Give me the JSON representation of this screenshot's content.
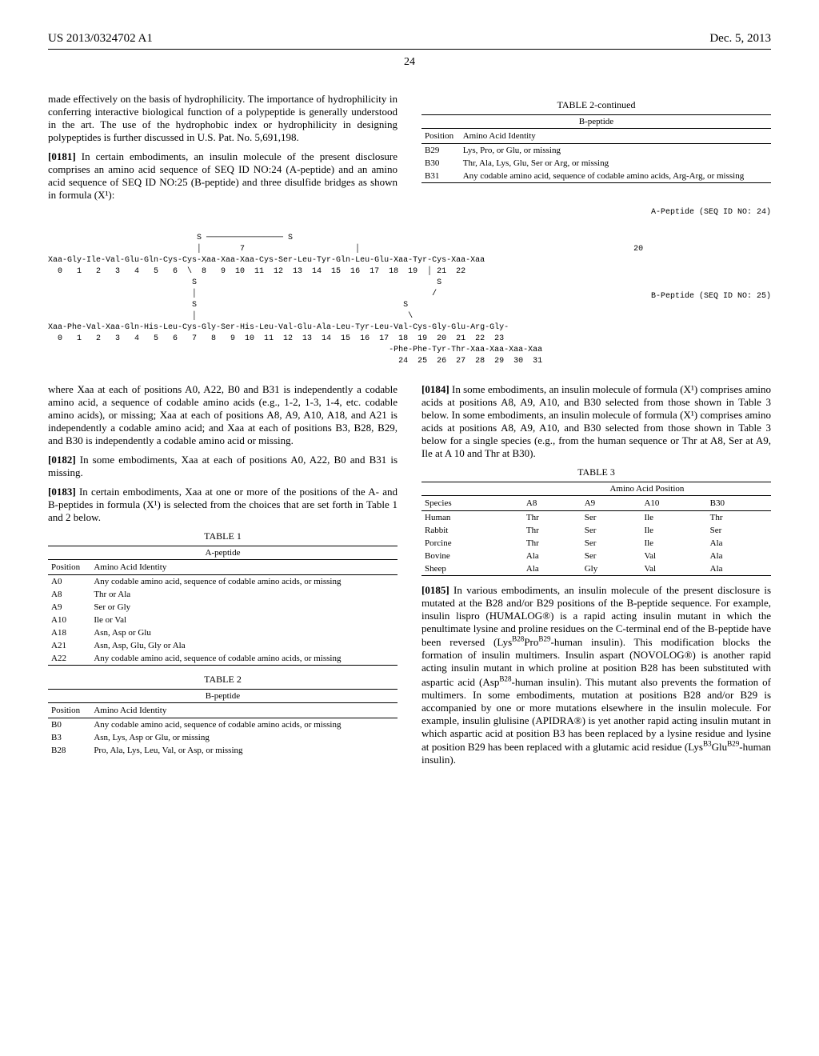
{
  "header": {
    "pub_no": "US 2013/0324702 A1",
    "date": "Dec. 5, 2013"
  },
  "page_no": "24",
  "left_intro": "made effectively on the basis of hydrophilicity. The importance of hydrophilicity in conferring interactive biological function of a polypeptide is generally understood in the art. The use of the hydrophobic index or hydrophilicity in designing polypeptides is further discussed in U.S. Pat. No. 5,691,198.",
  "para_0181_num": "[0181]",
  "para_0181": "In certain embodiments, an insulin molecule of the present disclosure comprises an amino acid sequence of SEQ ID NO:24 (A-peptide) and an amino acid sequence of SEQ ID NO:25 (B-peptide) and three disulfide bridges as shown in formula (X¹):",
  "table2_cont_title": "TABLE 2-continued",
  "table2_caption": "B-peptide",
  "table2_cols": [
    "Position",
    "Amino Acid Identity"
  ],
  "table2_rows": [
    [
      "B29",
      "Lys, Pro, or Glu, or missing"
    ],
    [
      "B30",
      "Thr, Ala, Lys, Glu, Ser or Arg, or missing"
    ],
    [
      "B31",
      "Any codable amino acid, sequence of codable amino acids, Arg-Arg, or missing"
    ]
  ],
  "seq_label_a": "A-Peptide (SEQ ID NO: 24)",
  "seq_label_b": "B-Peptide (SEQ ID NO: 25)",
  "seq_text": "                               S ──────────────── S\n                               │        7                       │                                                         20\nXaa-Gly-Ile-Val-Glu-Gln-Cys-Cys-Xaa-Xaa-Xaa-Cys-Ser-Leu-Tyr-Gln-Leu-Glu-Xaa-Tyr-Cys-Xaa-Xaa\n  0   1   2   3   4   5   6  \\  8   9  10  11  12  13  14  15  16  17  18  19  │ 21  22\n                              S                                                  S\n                              │                                                 /\n                              S                                           S\n                              │                                            \\\nXaa-Phe-Val-Xaa-Gln-His-Leu-Cys-Gly-Ser-His-Leu-Val-Glu-Ala-Leu-Tyr-Leu-Val-Cys-Gly-Glu-Arg-Gly-\n  0   1   2   3   4   5   6   7   8   9  10  11  12  13  14  15  16  17  18  19  20  21  22  23\n                                                                       -Phe-Phe-Tyr-Thr-Xaa-Xaa-Xaa-Xaa\n                                                                         24  25  26  27  28  29  30  31",
  "para_after_seq": "where Xaa at each of positions A0, A22, B0 and B31 is independently a codable amino acid, a sequence of codable amino acids (e.g., 1-2, 1-3, 1-4, etc. codable amino acids), or missing; Xaa at each of positions A8, A9, A10, A18, and A21 is independently a codable amino acid; and Xaa at each of positions B3, B28, B29, and B30 is independently a codable amino acid or missing.",
  "para_0182_num": "[0182]",
  "para_0182": "In some embodiments, Xaa at each of positions A0, A22, B0 and B31 is missing.",
  "para_0183_num": "[0183]",
  "para_0183": "In certain embodiments, Xaa at one or more of the positions of the A- and B-peptides in formula (X¹) is selected from the choices that are set forth in Table 1 and 2 below.",
  "table1_title": "TABLE 1",
  "table1_caption": "A-peptide",
  "table1_cols": [
    "Position",
    "Amino Acid Identity"
  ],
  "table1_rows": [
    [
      "A0",
      "Any codable amino acid, sequence of codable amino acids, or missing"
    ],
    [
      "A8",
      "Thr or Ala"
    ],
    [
      "A9",
      "Ser or Gly"
    ],
    [
      "A10",
      "Ile or Val"
    ],
    [
      "A18",
      "Asn, Asp or Glu"
    ],
    [
      "A21",
      "Asn, Asp, Glu, Gly or Ala"
    ],
    [
      "A22",
      "Any codable amino acid, sequence of codable amino acids, or missing"
    ]
  ],
  "table2b_title": "TABLE 2",
  "table2b_caption": "B-peptide",
  "table2b_cols": [
    "Position",
    "Amino Acid Identity"
  ],
  "table2b_rows": [
    [
      "B0",
      "Any codable amino acid, sequence of codable amino acids, or missing"
    ],
    [
      "B3",
      "Asn, Lys, Asp or Glu, or missing"
    ],
    [
      "B28",
      "Pro, Ala, Lys, Leu, Val, or Asp, or missing"
    ]
  ],
  "para_0184_num": "[0184]",
  "para_0184": "In some embodiments, an insulin molecule of formula (X¹) comprises amino acids at positions A8, A9, A10, and B30 selected from those shown in Table 3 below. In some embodiments, an insulin molecule of formula (X¹) comprises amino acids at positions A8, A9, A10, and B30 selected from those shown in Table 3 below for a single species (e.g., from the human sequence or Thr at A8, Ser at A9, Ile at A 10 and Thr at B30).",
  "table3_title": "TABLE 3",
  "table3_header": "Amino Acid Position",
  "table3_cols": [
    "Species",
    "A8",
    "A9",
    "A10",
    "B30"
  ],
  "table3_rows": [
    [
      "Human",
      "Thr",
      "Ser",
      "Ile",
      "Thr"
    ],
    [
      "Rabbit",
      "Thr",
      "Ser",
      "Ile",
      "Ser"
    ],
    [
      "Porcine",
      "Thr",
      "Ser",
      "Ile",
      "Ala"
    ],
    [
      "Bovine",
      "Ala",
      "Ser",
      "Val",
      "Ala"
    ],
    [
      "Sheep",
      "Ala",
      "Gly",
      "Val",
      "Ala"
    ]
  ],
  "para_0185_num": "[0185]",
  "para_0185_html": "In various embodiments, an insulin molecule of the present disclosure is mutated at the B28 and/or B29 positions of the B-peptide sequence. For example, insulin lispro (HUMALOG®) is a rapid acting insulin mutant in which the penultimate lysine and proline residues on the C-terminal end of the B-peptide have been reversed (Lys<sup>B28</sup>Pro<sup>B29</sup>-human insulin). This modification blocks the formation of insulin multimers. Insulin aspart (NOVOLOG®) is another rapid acting insulin mutant in which proline at position B28 has been substituted with aspartic acid (Asp<sup>B28</sup>-human insulin). This mutant also prevents the formation of multimers. In some embodiments, mutation at positions B28 and/or B29 is accompanied by one or more mutations elsewhere in the insulin molecule. For example, insulin glulisine (APIDRA®) is yet another rapid acting insulin mutant in which aspartic acid at position B3 has been replaced by a lysine residue and lysine at position B29 has been replaced with a glutamic acid residue (Lys<sup>B3</sup>Glu<sup>B29</sup>-human insulin)."
}
